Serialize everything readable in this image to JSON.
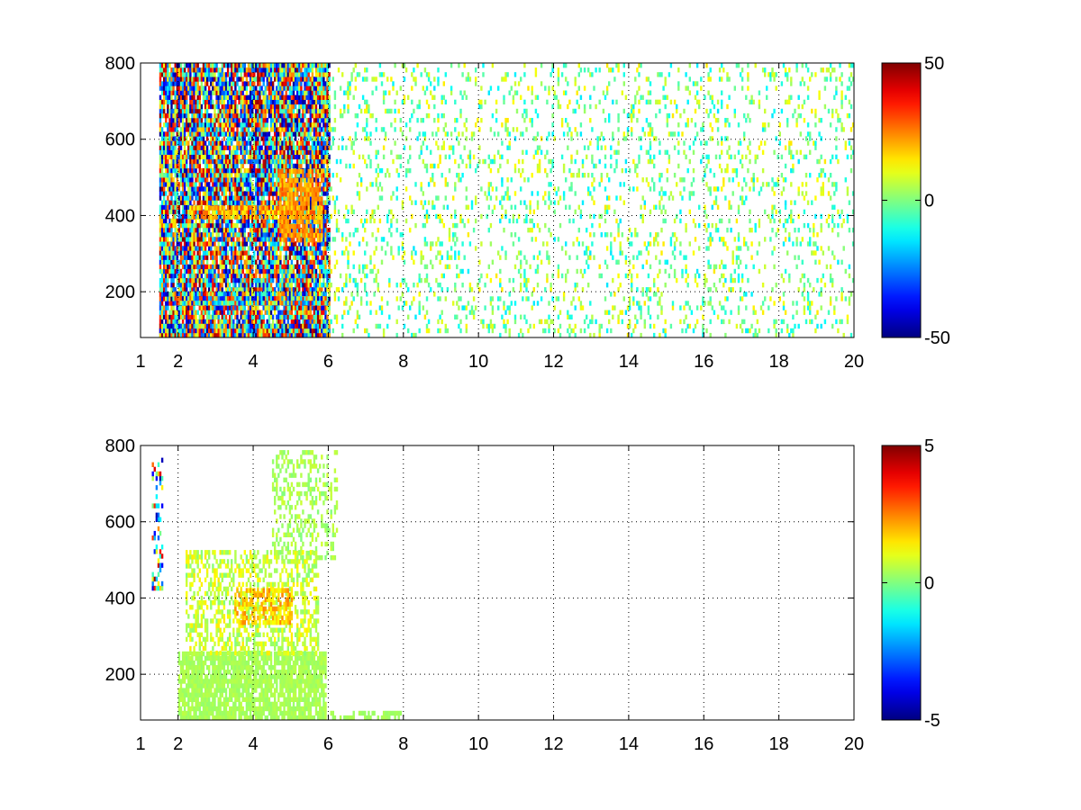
{
  "chart_data": [
    {
      "type": "heatmap",
      "panel": "top",
      "title": "",
      "xlabel": "",
      "ylabel": "",
      "xlim": [
        1,
        20
      ],
      "ylim": [
        80,
        800
      ],
      "x_ticks": [
        1,
        2,
        4,
        6,
        8,
        10,
        12,
        14,
        16,
        18,
        20
      ],
      "y_ticks": [
        200,
        400,
        600,
        800
      ],
      "grid": true,
      "colormap": "jet",
      "clim": [
        -50,
        50
      ],
      "colorbar_ticks": [
        -50,
        0,
        50
      ],
      "colorbar_position": "right",
      "features": [
        {
          "x_range": [
            1.5,
            6
          ],
          "y_range": [
            80,
            800
          ],
          "value_range": [
            -50,
            50
          ],
          "coverage": 0.9
        },
        {
          "x_range": [
            1.5,
            6
          ],
          "y_range": [
            80,
            110
          ],
          "value_range": [
            -50,
            50
          ],
          "coverage": 1.0
        },
        {
          "x_range": [
            1.9,
            5.9
          ],
          "y_range": [
            165,
            190
          ],
          "value_range": [
            -45,
            40
          ],
          "coverage": 0.95
        },
        {
          "x_range": [
            2.3,
            5.3
          ],
          "y_range": [
            390,
            420
          ],
          "value_range": [
            10,
            30
          ],
          "coverage": 0.7
        },
        {
          "x_range": [
            4.7,
            5.8
          ],
          "y_range": [
            330,
            520
          ],
          "value_range": [
            15,
            30
          ],
          "coverage": 0.7
        },
        {
          "x_range": [
            6,
            20
          ],
          "y_range": [
            80,
            800
          ],
          "value_range": [
            -15,
            15
          ],
          "coverage": 0.15
        }
      ]
    },
    {
      "type": "heatmap",
      "panel": "bottom",
      "title": "",
      "xlabel": "",
      "ylabel": "",
      "xlim": [
        1,
        20
      ],
      "ylim": [
        80,
        800
      ],
      "x_ticks": [
        1,
        2,
        4,
        6,
        8,
        10,
        12,
        14,
        16,
        18,
        20
      ],
      "y_ticks": [
        200,
        400,
        600,
        800
      ],
      "grid": true,
      "colormap": "jet",
      "clim": [
        -5,
        5
      ],
      "colorbar_ticks": [
        -5,
        0,
        5
      ],
      "colorbar_position": "right",
      "features": [
        {
          "x_range": [
            2,
            5.9
          ],
          "y_range": [
            80,
            250
          ],
          "value_range": [
            0.2,
            0.6
          ],
          "coverage": 0.85
        },
        {
          "x_range": [
            2.2,
            5.7
          ],
          "y_range": [
            250,
            520
          ],
          "value_range": [
            0,
            1.5
          ],
          "coverage": 0.45
        },
        {
          "x_range": [
            3.5,
            5
          ],
          "y_range": [
            330,
            420
          ],
          "value_range": [
            1,
            2.5
          ],
          "coverage": 0.6
        },
        {
          "x_range": [
            4.5,
            6.2
          ],
          "y_range": [
            500,
            780
          ],
          "value_range": [
            0,
            0.8
          ],
          "coverage": 0.3
        },
        {
          "x_range": [
            1.3,
            1.6
          ],
          "y_range": [
            420,
            780
          ],
          "value_range": [
            -5,
            5
          ],
          "coverage": 0.25
        },
        {
          "x_range": [
            6,
            8
          ],
          "y_range": [
            80,
            100
          ],
          "value_range": [
            0.2,
            0.5
          ],
          "coverage": 0.5
        }
      ]
    }
  ]
}
